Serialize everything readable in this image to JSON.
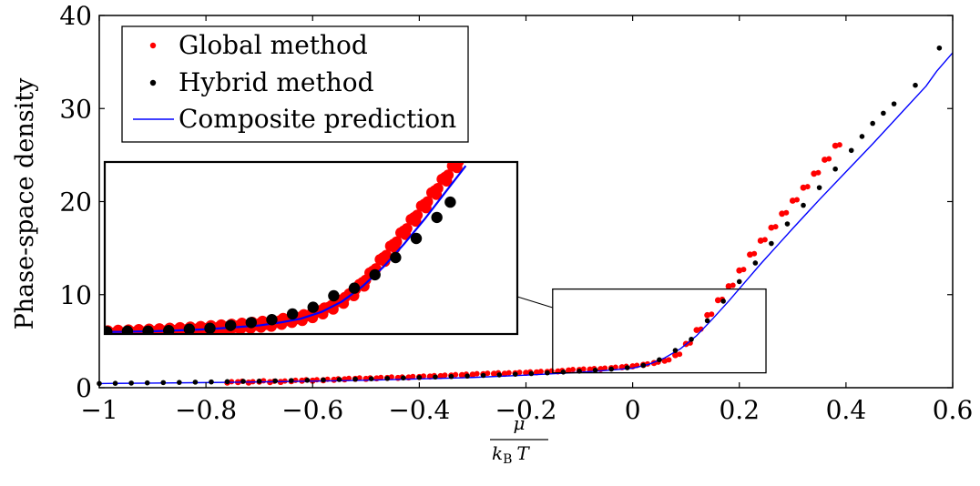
{
  "chart_data": {
    "type": "scatter",
    "title": "",
    "xlabel": {
      "numerator": "μ",
      "denominator_symbol": "k",
      "denominator_subscript": "B",
      "denominator_var": "T"
    },
    "ylabel": "Phase-space density",
    "xlim": [
      -1,
      0.6
    ],
    "ylim": [
      0,
      40
    ],
    "xticks": [
      "−1",
      "−0.8",
      "−0.6",
      "−0.4",
      "−0.2",
      "0",
      "0.2",
      "0.4",
      "0.6"
    ],
    "yticks": [
      "0",
      "10",
      "20",
      "30",
      "40"
    ],
    "grid": false,
    "legend_position": "top-left",
    "colors": {
      "global": "#ff0000",
      "hybrid": "#000000",
      "composite": "#0000ff"
    },
    "series": [
      {
        "name": "Global method",
        "kind": "points",
        "x": [
          -0.76,
          -0.74,
          -0.72,
          -0.7,
          -0.68,
          -0.66,
          -0.64,
          -0.62,
          -0.6,
          -0.58,
          -0.56,
          -0.54,
          -0.52,
          -0.5,
          -0.48,
          -0.46,
          -0.44,
          -0.42,
          -0.4,
          -0.38,
          -0.36,
          -0.34,
          -0.32,
          -0.3,
          -0.28,
          -0.26,
          -0.24,
          -0.22,
          -0.2,
          -0.18,
          -0.16,
          -0.14,
          -0.12,
          -0.1,
          -0.08,
          -0.06,
          -0.04,
          -0.02,
          0.0,
          0.02,
          0.04,
          0.06,
          0.08,
          0.1,
          0.12,
          0.14,
          0.16,
          0.18,
          0.2,
          0.22,
          0.24,
          0.26,
          0.28,
          0.3,
          0.32,
          0.34,
          0.36,
          0.38
        ],
        "y": [
          0.55,
          0.6,
          0.55,
          0.65,
          0.6,
          0.62,
          0.7,
          0.75,
          0.75,
          0.8,
          0.85,
          0.9,
          0.95,
          0.95,
          1.0,
          1.05,
          1.05,
          1.1,
          1.15,
          1.2,
          1.25,
          1.3,
          1.35,
          1.4,
          1.45,
          1.5,
          1.5,
          1.55,
          1.6,
          1.65,
          1.7,
          1.75,
          1.85,
          1.9,
          1.95,
          2.0,
          2.1,
          2.2,
          2.3,
          2.45,
          2.65,
          2.9,
          3.5,
          4.7,
          6.2,
          7.8,
          9.4,
          10.9,
          12.6,
          14.3,
          15.8,
          17.2,
          18.7,
          20.1,
          21.5,
          23.0,
          24.5,
          26.0
        ]
      },
      {
        "name": "Hybrid method",
        "kind": "points",
        "x": [
          -1.0,
          -0.97,
          -0.94,
          -0.91,
          -0.88,
          -0.85,
          -0.82,
          -0.79,
          -0.76,
          -0.73,
          -0.7,
          -0.67,
          -0.64,
          -0.61,
          -0.58,
          -0.55,
          -0.52,
          -0.49,
          -0.46,
          -0.43,
          -0.4,
          -0.37,
          -0.34,
          -0.31,
          -0.28,
          -0.25,
          -0.22,
          -0.19,
          -0.16,
          -0.13,
          -0.1,
          -0.07,
          -0.04,
          -0.01,
          0.02,
          0.05,
          0.08,
          0.11,
          0.14,
          0.17,
          0.2,
          0.23,
          0.26,
          0.29,
          0.32,
          0.35,
          0.38,
          0.41,
          0.43,
          0.45,
          0.47,
          0.49,
          0.53,
          0.575
        ],
        "y": [
          0.45,
          0.47,
          0.5,
          0.52,
          0.55,
          0.57,
          0.6,
          0.62,
          0.65,
          0.68,
          0.7,
          0.73,
          0.77,
          0.8,
          0.84,
          0.88,
          0.92,
          0.96,
          1.0,
          1.05,
          1.1,
          1.15,
          1.2,
          1.25,
          1.32,
          1.38,
          1.45,
          1.52,
          1.6,
          1.68,
          1.78,
          1.88,
          2.0,
          2.15,
          2.4,
          3.0,
          4.0,
          5.2,
          7.2,
          9.3,
          11.4,
          13.4,
          15.5,
          17.6,
          19.6,
          21.5,
          23.5,
          25.5,
          27.0,
          28.4,
          29.5,
          30.5,
          32.5,
          36.5
        ]
      },
      {
        "name": "Composite prediction",
        "kind": "line",
        "x": [
          -1.0,
          -0.9,
          -0.8,
          -0.7,
          -0.6,
          -0.5,
          -0.4,
          -0.3,
          -0.2,
          -0.1,
          -0.05,
          0.0,
          0.03,
          0.06,
          0.09,
          0.12,
          0.15,
          0.18,
          0.21,
          0.24,
          0.27,
          0.3,
          0.35,
          0.4,
          0.45,
          0.5,
          0.55,
          0.57,
          0.6
        ],
        "y": [
          0.45,
          0.5,
          0.55,
          0.62,
          0.7,
          0.8,
          0.95,
          1.1,
          1.35,
          1.65,
          1.85,
          2.1,
          2.5,
          3.2,
          4.2,
          5.6,
          7.4,
          9.3,
          11.3,
          13.3,
          15.2,
          17.1,
          20.2,
          23.2,
          26.2,
          29.3,
          32.4,
          34.0,
          36.0
        ]
      }
    ],
    "inset": {
      "zoom_xlim": [
        -0.15,
        0.25
      ],
      "zoom_ylim": [
        1.6,
        10.6
      ],
      "global_x": [
        -0.15,
        -0.14,
        -0.13,
        -0.12,
        -0.11,
        -0.1,
        -0.09,
        -0.08,
        -0.07,
        -0.06,
        -0.05,
        -0.04,
        -0.03,
        -0.02,
        -0.01,
        0.0,
        0.01,
        0.02,
        0.03,
        0.04,
        0.05,
        0.06,
        0.07,
        0.08,
        0.09,
        0.1,
        0.11,
        0.12,
        0.13,
        0.14,
        0.15,
        0.16,
        0.17,
        0.18,
        0.19,
        0.2
      ],
      "global_y": [
        1.65,
        1.68,
        1.7,
        1.72,
        1.74,
        1.76,
        1.79,
        1.82,
        1.85,
        1.88,
        1.92,
        1.96,
        2.0,
        2.05,
        2.1,
        2.15,
        2.2,
        2.3,
        2.4,
        2.5,
        2.65,
        2.85,
        3.1,
        3.4,
        3.8,
        4.3,
        4.9,
        5.6,
        6.3,
        7.0,
        7.7,
        8.4,
        9.1,
        9.8,
        10.5,
        11.2
      ],
      "hybrid_x": [
        -0.148,
        -0.128,
        -0.108,
        -0.088,
        -0.068,
        -0.048,
        -0.028,
        -0.008,
        0.012,
        0.032,
        0.052,
        0.072,
        0.092,
        0.112,
        0.132,
        0.152,
        0.172,
        0.185
      ],
      "hybrid_y": [
        1.72,
        1.75,
        1.75,
        1.78,
        1.85,
        1.9,
        2.05,
        2.2,
        2.35,
        2.65,
        3.0,
        3.6,
        4.0,
        4.7,
        5.6,
        6.6,
        7.7,
        8.5
      ],
      "line_x": [
        -0.15,
        -0.1,
        -0.05,
        0.0,
        0.02,
        0.04,
        0.06,
        0.08,
        0.1,
        0.12,
        0.14,
        0.16,
        0.18,
        0.2
      ],
      "line_y": [
        1.7,
        1.75,
        1.85,
        2.05,
        2.2,
        2.4,
        2.75,
        3.3,
        4.1,
        5.1,
        6.3,
        7.6,
        9.0,
        10.4
      ]
    }
  }
}
